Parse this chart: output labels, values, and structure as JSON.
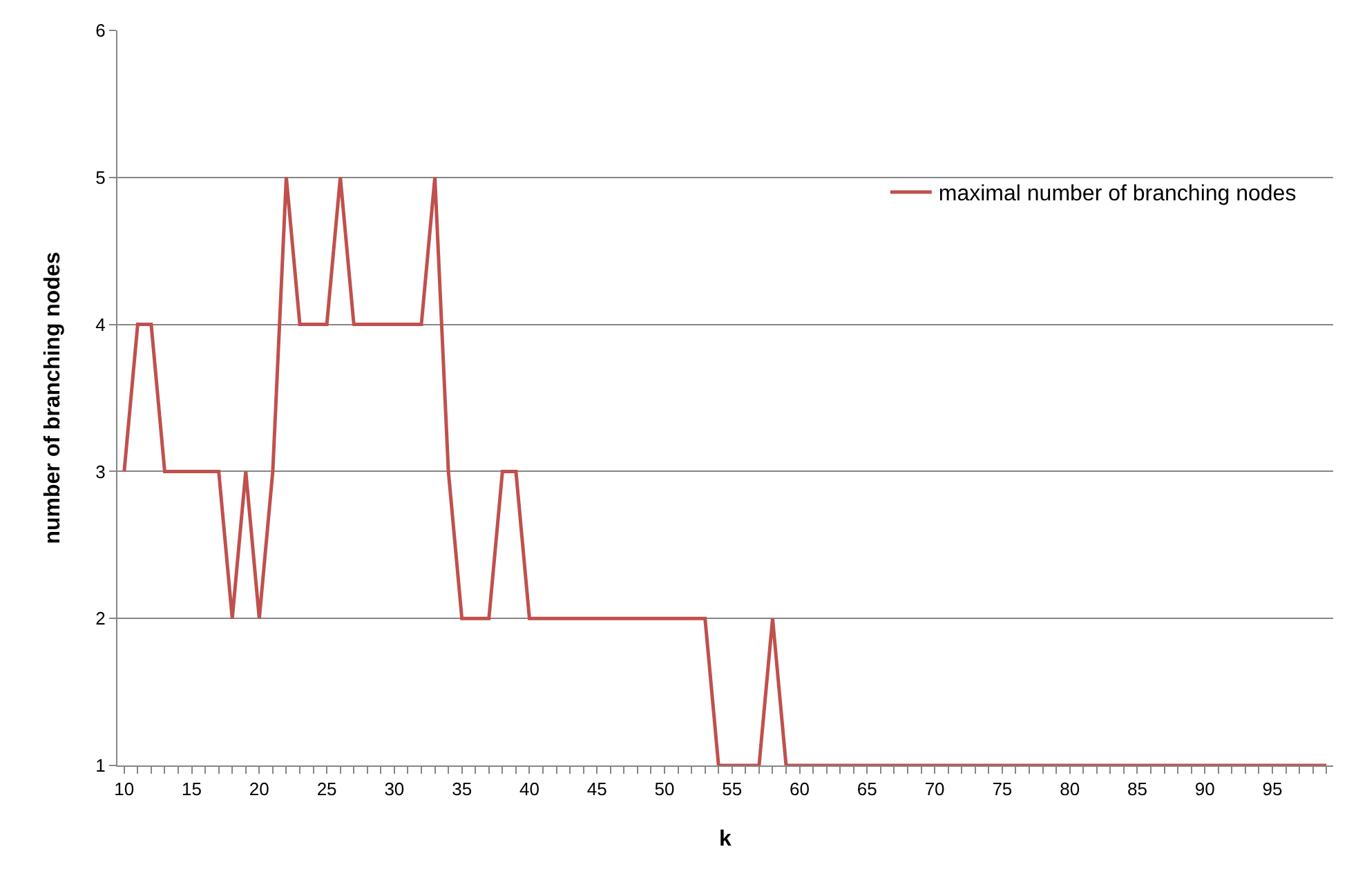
{
  "chart_data": {
    "type": "line",
    "xlabel": "k",
    "ylabel": "number of branching nodes",
    "x": [
      10,
      11,
      12,
      13,
      14,
      15,
      16,
      17,
      18,
      19,
      20,
      21,
      22,
      23,
      24,
      25,
      26,
      27,
      28,
      29,
      30,
      31,
      32,
      33,
      34,
      35,
      36,
      37,
      38,
      39,
      40,
      41,
      42,
      43,
      44,
      45,
      46,
      47,
      48,
      49,
      50,
      51,
      52,
      53,
      54,
      55,
      56,
      57,
      58,
      59,
      60,
      61,
      62,
      63,
      64,
      65,
      66,
      67,
      68,
      69,
      70,
      71,
      72,
      73,
      74,
      75,
      76,
      77,
      78,
      79,
      80,
      81,
      82,
      83,
      84,
      85,
      86,
      87,
      88,
      89,
      90,
      91,
      92,
      93,
      94,
      95,
      96,
      97,
      98,
      99
    ],
    "series": [
      {
        "name": "maximal number of branching nodes",
        "color": "#c0504d",
        "values": [
          3,
          4,
          4,
          3,
          3,
          3,
          3,
          3,
          2,
          3,
          2,
          3,
          5,
          4,
          4,
          4,
          5,
          4,
          4,
          4,
          4,
          4,
          4,
          5,
          3,
          2,
          2,
          2,
          3,
          3,
          2,
          2,
          2,
          2,
          2,
          2,
          2,
          2,
          2,
          2,
          2,
          2,
          2,
          2,
          1,
          1,
          1,
          1,
          2,
          1,
          1,
          1,
          1,
          1,
          1,
          1,
          1,
          1,
          1,
          1,
          1,
          1,
          1,
          1,
          1,
          1,
          1,
          1,
          1,
          1,
          1,
          1,
          1,
          1,
          1,
          1,
          1,
          1,
          1,
          1,
          1,
          1,
          1,
          1,
          1,
          1,
          1,
          1,
          1,
          1
        ]
      }
    ],
    "xlim": [
      9.5,
      99.5
    ],
    "xticks": [
      10,
      15,
      20,
      25,
      30,
      35,
      40,
      45,
      50,
      55,
      60,
      65,
      70,
      75,
      80,
      85,
      90,
      95
    ],
    "ylim": [
      1,
      6
    ],
    "yticks": [
      1,
      2,
      3,
      4,
      5,
      6
    ],
    "grid": "y",
    "legend": "right",
    "marker": "none",
    "line_style": "solid"
  }
}
